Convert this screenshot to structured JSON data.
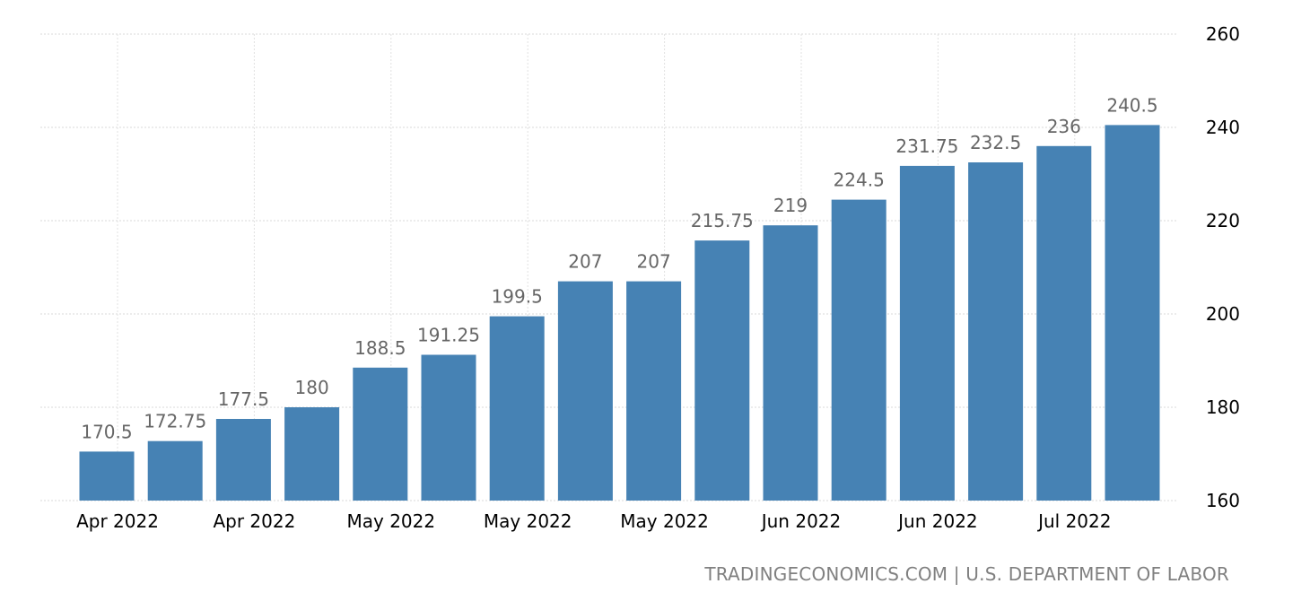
{
  "chart_data": {
    "type": "bar",
    "categories": [
      "Apr 2022",
      "",
      "Apr 2022",
      "",
      "May 2022",
      "",
      "May 2022",
      "",
      "May 2022",
      "",
      "Jun 2022",
      "",
      "Jun 2022",
      "",
      "Jul 2022",
      ""
    ],
    "values": [
      170.5,
      172.75,
      177.5,
      180,
      188.5,
      191.25,
      199.5,
      207,
      207,
      215.75,
      219,
      224.5,
      231.75,
      232.5,
      236,
      240.5
    ],
    "value_labels": [
      "170.5",
      "172.75",
      "177.5",
      "180",
      "188.5",
      "191.25",
      "199.5",
      "207",
      "207",
      "215.75",
      "219",
      "224.5",
      "231.75",
      "232.5",
      "236",
      "240.5"
    ],
    "ylim": [
      160,
      260
    ],
    "yticks": [
      "160",
      "180",
      "200",
      "220",
      "240",
      "260"
    ],
    "yaxis_position": "right",
    "grid": true,
    "bar_color": "#4682b4"
  },
  "source": "TRADINGECONOMICS.COM | U.S. DEPARTMENT OF LABOR"
}
